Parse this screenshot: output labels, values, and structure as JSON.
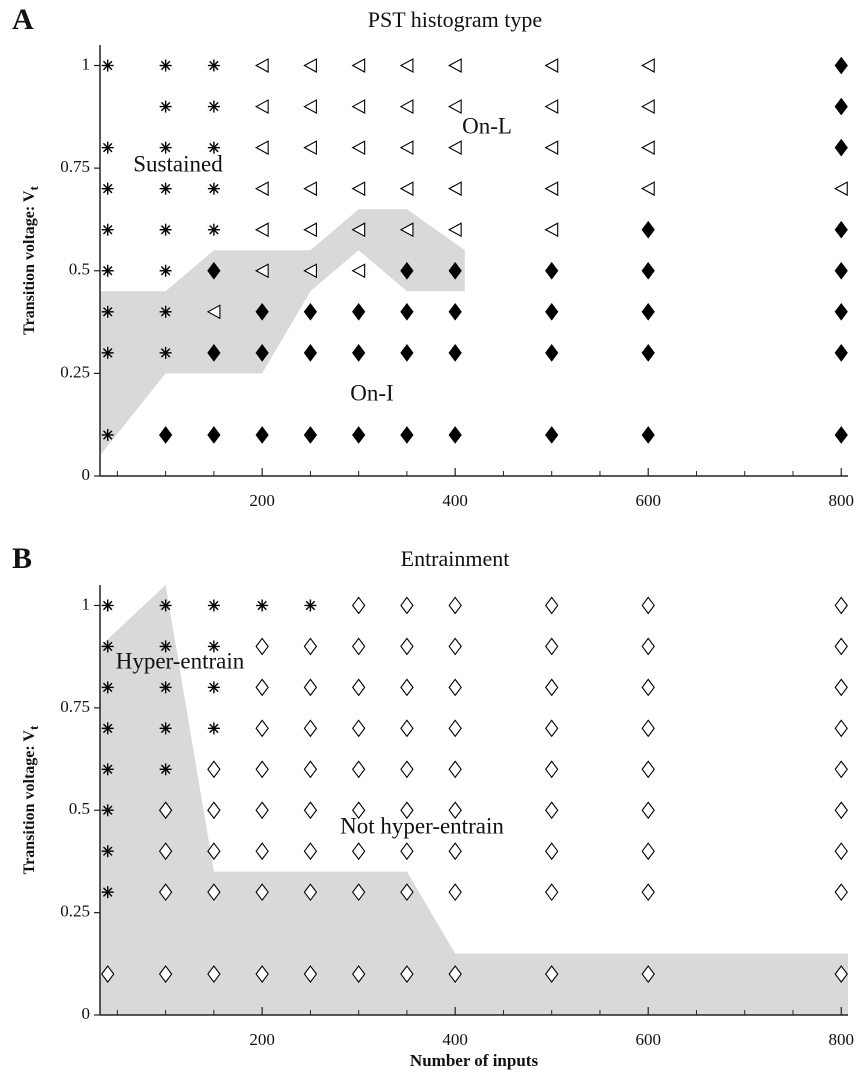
{
  "chart_data": [
    {
      "type": "scatter",
      "panel": "A",
      "title": "PST histogram type",
      "ylabel": "Transition voltage: V",
      "ylabel_sub": "t",
      "xlim": [
        32,
        807
      ],
      "ylim": [
        0,
        1.05
      ],
      "xticks": [
        200,
        400,
        600,
        800
      ],
      "xminorticks": [
        50,
        100,
        150,
        250,
        300,
        350,
        450,
        500,
        550,
        650,
        700,
        750
      ],
      "yticks": [
        0,
        0.25,
        0.5,
        0.75,
        1
      ],
      "annotations": [
        "Sustained",
        "On-L",
        "On-I"
      ],
      "regions": [
        {
          "color": "#d9d9d9",
          "x": [
            32,
            100,
            150,
            250,
            300,
            350,
            410,
            410,
            350,
            300,
            250,
            200,
            100,
            32
          ],
          "y": [
            0.45,
            0.45,
            0.55,
            0.55,
            0.65,
            0.65,
            0.55,
            0.45,
            0.45,
            0.55,
            0.45,
            0.25,
            0.25,
            0.05
          ]
        }
      ],
      "series": [
        {
          "marker": "star",
          "color": "#000000",
          "x": [
            40,
            100,
            150,
            100,
            150,
            40,
            100,
            150,
            40,
            100,
            150,
            40,
            100,
            150,
            40,
            100,
            40,
            100,
            40,
            100,
            40
          ],
          "y": [
            1,
            1,
            1,
            0.9,
            0.9,
            0.8,
            0.8,
            0.8,
            0.7,
            0.7,
            0.7,
            0.6,
            0.6,
            0.6,
            0.5,
            0.5,
            0.4,
            0.4,
            0.3,
            0.3,
            0.1
          ]
        },
        {
          "marker": "open-triangle-left",
          "color": "#000000",
          "x": [
            200,
            250,
            300,
            350,
            400,
            500,
            600,
            200,
            250,
            300,
            350,
            400,
            500,
            600,
            200,
            250,
            300,
            350,
            400,
            500,
            600,
            200,
            250,
            300,
            350,
            400,
            500,
            600,
            800,
            200,
            250,
            300,
            350,
            400,
            500,
            200,
            250,
            300,
            150
          ],
          "y": [
            1,
            1,
            1,
            1,
            1,
            1,
            1,
            0.9,
            0.9,
            0.9,
            0.9,
            0.9,
            0.9,
            0.9,
            0.8,
            0.8,
            0.8,
            0.8,
            0.8,
            0.8,
            0.8,
            0.7,
            0.7,
            0.7,
            0.7,
            0.7,
            0.7,
            0.7,
            0.7,
            0.6,
            0.6,
            0.6,
            0.6,
            0.6,
            0.6,
            0.5,
            0.5,
            0.5,
            0.4
          ]
        },
        {
          "marker": "filled-diamond",
          "color": "#000000",
          "x": [
            800,
            800,
            800,
            600,
            800,
            150,
            350,
            400,
            500,
            600,
            800,
            200,
            250,
            300,
            350,
            400,
            500,
            600,
            800,
            150,
            200,
            250,
            300,
            350,
            400,
            500,
            600,
            800,
            100,
            150,
            200,
            250,
            300,
            350,
            400,
            500,
            600,
            800
          ],
          "y": [
            1,
            0.9,
            0.8,
            0.6,
            0.6,
            0.5,
            0.5,
            0.5,
            0.5,
            0.5,
            0.5,
            0.4,
            0.4,
            0.4,
            0.4,
            0.4,
            0.4,
            0.4,
            0.4,
            0.3,
            0.3,
            0.3,
            0.3,
            0.3,
            0.3,
            0.3,
            0.3,
            0.3,
            0.1,
            0.1,
            0.1,
            0.1,
            0.1,
            0.1,
            0.1,
            0.1,
            0.1,
            0.1
          ]
        }
      ]
    },
    {
      "type": "scatter",
      "panel": "B",
      "title": "Entrainment",
      "ylabel": "Transition voltage: V",
      "ylabel_sub": "t",
      "xlabel": "Number of inputs",
      "xlim": [
        32,
        807
      ],
      "ylim": [
        0,
        1.05
      ],
      "xticks": [
        200,
        400,
        600,
        800
      ],
      "xminorticks": [
        50,
        100,
        150,
        250,
        300,
        350,
        450,
        500,
        550,
        650,
        700,
        750
      ],
      "yticks": [
        0,
        0.25,
        0.5,
        0.75,
        1
      ],
      "annotations": [
        "Hyper-entrain",
        "Not hyper-entrain"
      ],
      "regions": [
        {
          "color": "#d9d9d9",
          "x": [
            32,
            100,
            150,
            350,
            400,
            807,
            807,
            32
          ],
          "y": [
            0.9,
            1.05,
            0.35,
            0.35,
            0.15,
            0.15,
            0,
            0
          ]
        }
      ],
      "series": [
        {
          "marker": "star",
          "color": "#000000",
          "x": [
            40,
            100,
            150,
            200,
            250,
            40,
            100,
            150,
            40,
            100,
            150,
            40,
            100,
            150,
            40,
            100,
            40,
            40,
            40
          ],
          "y": [
            1,
            1,
            1,
            1,
            1,
            0.9,
            0.9,
            0.9,
            0.8,
            0.8,
            0.8,
            0.7,
            0.7,
            0.7,
            0.6,
            0.6,
            0.5,
            0.4,
            0.3
          ]
        },
        {
          "marker": "open-diamond",
          "color": "#000000",
          "x": [
            300,
            350,
            400,
            500,
            600,
            800,
            200,
            250,
            300,
            350,
            400,
            500,
            600,
            800,
            200,
            250,
            300,
            350,
            400,
            500,
            600,
            800,
            200,
            250,
            300,
            350,
            400,
            500,
            600,
            800,
            150,
            200,
            250,
            300,
            350,
            400,
            500,
            600,
            800,
            100,
            150,
            200,
            250,
            300,
            350,
            400,
            500,
            600,
            800,
            100,
            150,
            200,
            250,
            300,
            350,
            400,
            500,
            600,
            800,
            100,
            150,
            200,
            250,
            300,
            350,
            400,
            500,
            600,
            800,
            40,
            100,
            150,
            200,
            250,
            300,
            350,
            400,
            500,
            600,
            800
          ],
          "y": [
            1,
            1,
            1,
            1,
            1,
            1,
            0.9,
            0.9,
            0.9,
            0.9,
            0.9,
            0.9,
            0.9,
            0.9,
            0.8,
            0.8,
            0.8,
            0.8,
            0.8,
            0.8,
            0.8,
            0.8,
            0.7,
            0.7,
            0.7,
            0.7,
            0.7,
            0.7,
            0.7,
            0.7,
            0.6,
            0.6,
            0.6,
            0.6,
            0.6,
            0.6,
            0.6,
            0.6,
            0.6,
            0.5,
            0.5,
            0.5,
            0.5,
            0.5,
            0.5,
            0.5,
            0.5,
            0.5,
            0.5,
            0.4,
            0.4,
            0.4,
            0.4,
            0.4,
            0.4,
            0.4,
            0.4,
            0.4,
            0.4,
            0.3,
            0.3,
            0.3,
            0.3,
            0.3,
            0.3,
            0.3,
            0.3,
            0.3,
            0.3,
            0.1,
            0.1,
            0.1,
            0.1,
            0.1,
            0.1,
            0.1,
            0.1,
            0.1,
            0.1,
            0.1
          ]
        }
      ]
    }
  ]
}
